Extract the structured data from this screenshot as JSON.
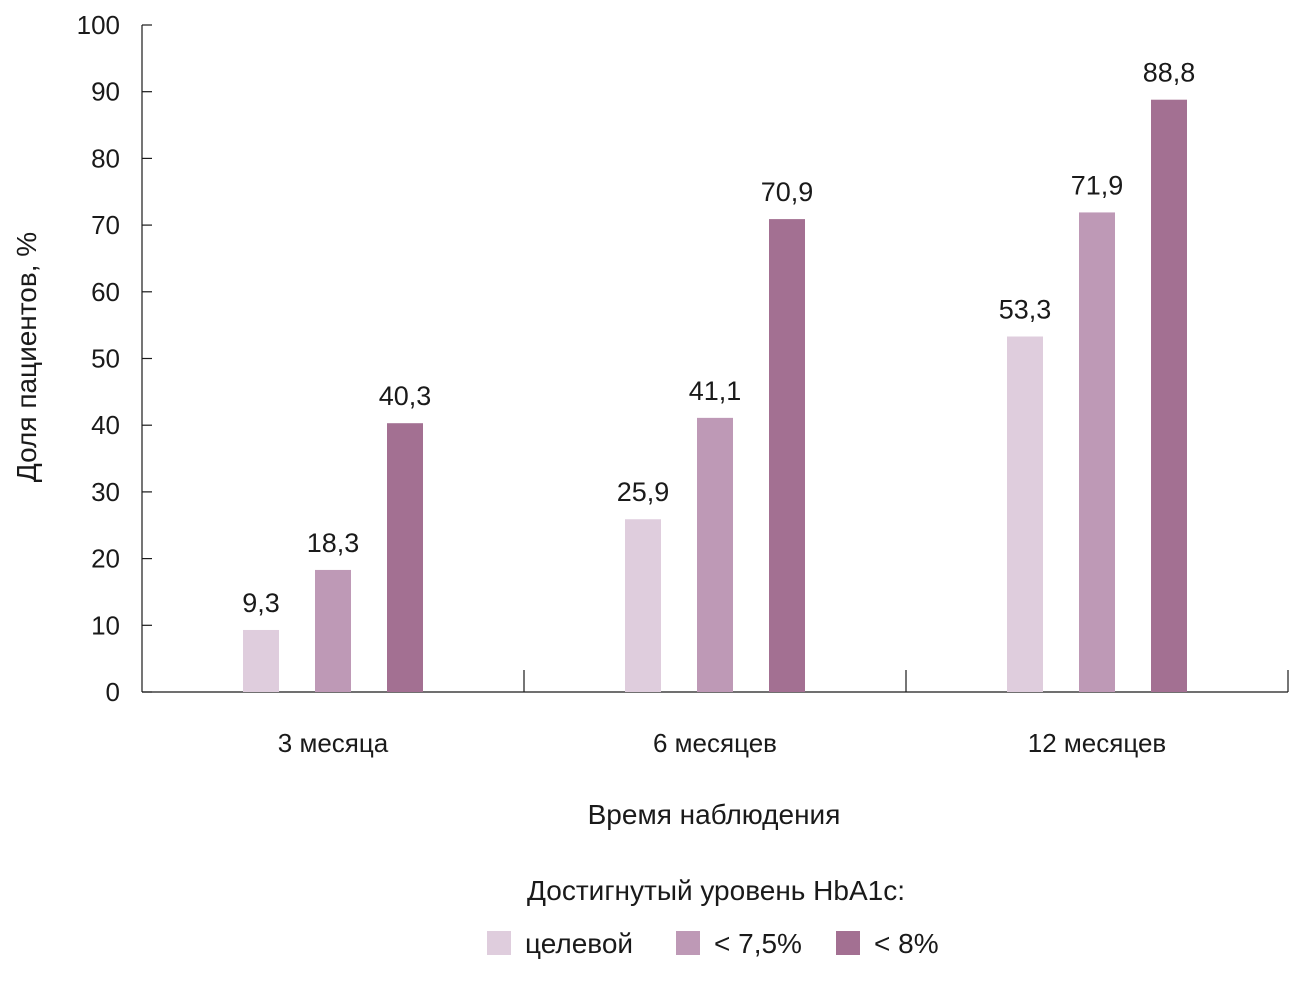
{
  "chart_data": {
    "type": "bar",
    "categories": [
      "3 месяца",
      "6 месяцев",
      "12 месяцев"
    ],
    "series": [
      {
        "name": "целевой",
        "values": [
          9.3,
          25.9,
          53.3
        ],
        "labels": [
          "9,3",
          "25,9",
          "53,3"
        ],
        "color": "#dfcddd"
      },
      {
        "name": "< 7,5%",
        "values": [
          18.3,
          41.1,
          71.9
        ],
        "labels": [
          "18,3",
          "41,1",
          "71,9"
        ],
        "color": "#be99b6"
      },
      {
        "name": "< 8%",
        "values": [
          40.3,
          70.9,
          88.8
        ],
        "labels": [
          "40,3",
          "70,9",
          "88,8"
        ],
        "color": "#a37092"
      }
    ],
    "xlabel": "Время наблюдения",
    "ylabel": "Доля пациентов, %",
    "ylim": [
      0,
      100
    ],
    "yticks": [
      0,
      10,
      20,
      30,
      40,
      50,
      60,
      70,
      80,
      90,
      100
    ],
    "grid": false,
    "legend": {
      "title": "Достигнутый уровень HbA1c:",
      "placement": "bottom-center"
    }
  }
}
